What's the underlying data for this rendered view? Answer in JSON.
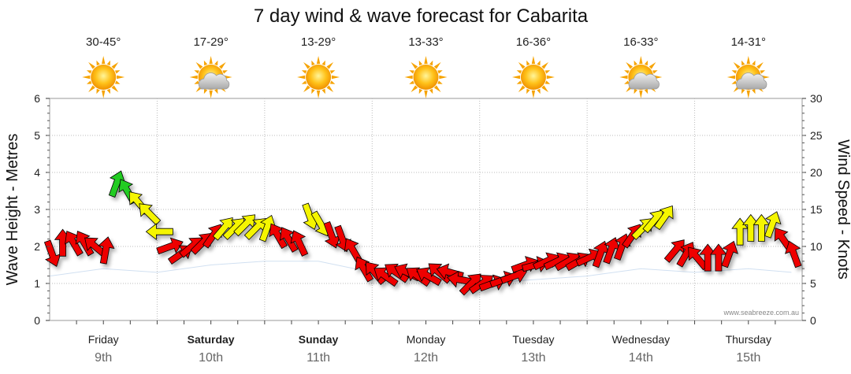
{
  "chart_data": {
    "type": "line",
    "title": "7 day wind & wave forecast for Cabarita",
    "ylabel_left": "Wave Height - Metres",
    "ylabel_right": "Wind Speed - Knots",
    "ylim_left": [
      0,
      6
    ],
    "ylim_right": [
      0,
      30
    ],
    "yticks_left": [
      "0",
      "1",
      "2",
      "3",
      "4",
      "5",
      "6"
    ],
    "yticks_right": [
      "0",
      "5",
      "10",
      "15",
      "20",
      "25",
      "30"
    ],
    "credit": "www.seabreeze.com.au",
    "days": [
      {
        "name": "Friday",
        "date": "9th",
        "temp": "30-45°",
        "weather": "sun-icon",
        "bold": false
      },
      {
        "name": "Saturday",
        "date": "10th",
        "temp": "17-29°",
        "weather": "sun-cloud-icon",
        "bold": true
      },
      {
        "name": "Sunday",
        "date": "11th",
        "temp": "13-29°",
        "weather": "sun-icon",
        "bold": true
      },
      {
        "name": "Monday",
        "date": "12th",
        "temp": "13-33°",
        "weather": "sun-icon",
        "bold": false
      },
      {
        "name": "Tuesday",
        "date": "13th",
        "temp": "16-36°",
        "weather": "sun-icon",
        "bold": false
      },
      {
        "name": "Wednesday",
        "date": "14th",
        "temp": "16-33°",
        "weather": "sun-cloud-icon",
        "bold": false
      },
      {
        "name": "Thursday",
        "date": "15th",
        "temp": "14-31°",
        "weather": "sun-cloud-icon",
        "bold": false
      }
    ],
    "colors": {
      "low": "#ee0000",
      "mid": "#f5f500",
      "high": "#22cc22",
      "outline": "#000000"
    },
    "wind_series": {
      "name": "Wind",
      "unit": "knots",
      "x_day": [
        0.0,
        0.1,
        0.2,
        0.3,
        0.4,
        0.5,
        0.6,
        0.7,
        0.8,
        0.9,
        1.0,
        1.1,
        1.2,
        1.3,
        1.4,
        1.5,
        1.6,
        1.7,
        1.8,
        1.9,
        2.0,
        2.1,
        2.2,
        2.3,
        2.4,
        2.5,
        2.6,
        2.7,
        2.8,
        2.9,
        3.0,
        3.1,
        3.2,
        3.3,
        3.4,
        3.5,
        3.6,
        3.7,
        3.8,
        3.9,
        4.0,
        4.1,
        4.2,
        4.3,
        4.4,
        4.5,
        4.6,
        4.7,
        4.8,
        4.9,
        5.0,
        5.1,
        5.2,
        5.3,
        5.4,
        5.5,
        5.6,
        5.7,
        5.8,
        5.9,
        6.0,
        6.1,
        6.2,
        6.3,
        6.4,
        6.5,
        6.6,
        6.7,
        6.8,
        6.9
      ],
      "speed": [
        9,
        10.5,
        10.5,
        10.5,
        10,
        9.5,
        18.5,
        17.5,
        16,
        14.5,
        12,
        10,
        9,
        10,
        10.5,
        11.5,
        12.5,
        12.5,
        13,
        12.5,
        12.5,
        11.5,
        11,
        10.5,
        14,
        13,
        11.5,
        11,
        9.5,
        7,
        6.5,
        6,
        6.5,
        6.5,
        6,
        6,
        6.5,
        6.5,
        5.5,
        5,
        5,
        5,
        5.5,
        6,
        7.5,
        7.5,
        8,
        8,
        8,
        8,
        8.5,
        9,
        9.5,
        10,
        11.5,
        12.5,
        13.5,
        14,
        9.5,
        9,
        8.5,
        8.5,
        8.5,
        9,
        12,
        12.5,
        12.5,
        13,
        11,
        9
      ],
      "direction_deg": [
        340,
        180,
        150,
        150,
        130,
        190,
        200,
        150,
        140,
        135,
        90,
        250,
        235,
        230,
        225,
        215,
        220,
        225,
        225,
        225,
        200,
        150,
        150,
        155,
        340,
        330,
        340,
        340,
        150,
        150,
        140,
        125,
        125,
        115,
        125,
        120,
        130,
        105,
        100,
        225,
        235,
        250,
        250,
        250,
        250,
        255,
        245,
        245,
        240,
        240,
        245,
        200,
        200,
        200,
        215,
        225,
        220,
        215,
        220,
        210,
        140,
        180,
        180,
        200,
        180,
        180,
        180,
        200,
        145,
        160
      ]
    },
    "wave_series": {
      "name": "Waves",
      "unit": "metres",
      "x_day": [
        0.0,
        0.5,
        1.0,
        1.5,
        2.0,
        2.5,
        3.0,
        3.5,
        4.0,
        4.5,
        5.0,
        5.5,
        6.0,
        6.5,
        6.9
      ],
      "height": [
        1.2,
        1.4,
        1.3,
        1.5,
        1.6,
        1.6,
        1.3,
        1.2,
        1.0,
        1.1,
        1.2,
        1.4,
        1.3,
        1.4,
        1.3
      ]
    }
  }
}
